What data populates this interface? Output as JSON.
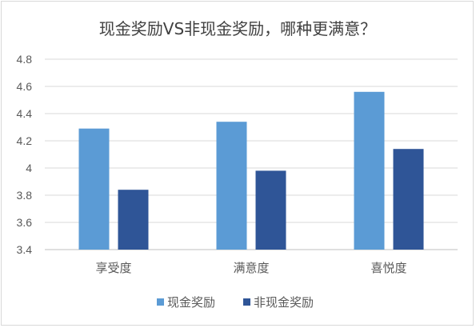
{
  "chart_data": {
    "type": "bar",
    "title": "现金奖励VS非现金奖励，哪种更满意？",
    "categories": [
      "享受度",
      "满意度",
      "喜悦度"
    ],
    "series": [
      {
        "name": "现金奖励",
        "values": [
          4.29,
          4.34,
          4.56
        ],
        "color": "#5b9bd5"
      },
      {
        "name": "非现金奖励",
        "values": [
          3.84,
          3.98,
          4.14
        ],
        "color": "#2f5597"
      }
    ],
    "ylim": [
      3.4,
      4.8
    ],
    "yticks": [
      "3.4",
      "3.6",
      "3.8",
      "4",
      "4.2",
      "4.4",
      "4.6",
      "4.8"
    ],
    "grid": true,
    "legend": "bottom",
    "gridline_color": "#d9d9d9",
    "axis_color": "#bfbfbf"
  }
}
